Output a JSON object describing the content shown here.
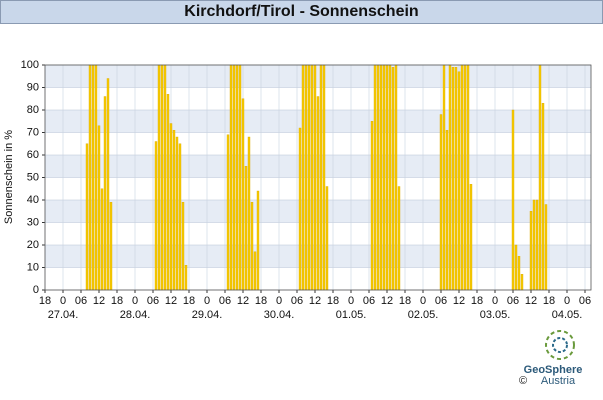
{
  "chart_data": {
    "type": "bar",
    "title": "Kirchdorf/Tirol - Sonnenschein",
    "ylabel": "Sonnenschein in %",
    "color": "#f7cc00",
    "edge": "#d9a900",
    "band_color": "#e6ecf5",
    "grid": true,
    "ylim": [
      0,
      100
    ],
    "yticks": [
      0,
      10,
      20,
      30,
      40,
      50,
      60,
      70,
      80,
      90,
      100
    ],
    "xlim": [
      -6,
      176
    ],
    "xticks": [
      {
        "value": -6,
        "label": "18"
      },
      {
        "value": 0,
        "label": "0"
      },
      {
        "value": 6,
        "label": "06"
      },
      {
        "value": 12,
        "label": "12"
      },
      {
        "value": 18,
        "label": "18"
      },
      {
        "value": 24,
        "label": "0"
      },
      {
        "value": 30,
        "label": "06"
      },
      {
        "value": 36,
        "label": "12"
      },
      {
        "value": 42,
        "label": "18"
      },
      {
        "value": 48,
        "label": "0"
      },
      {
        "value": 54,
        "label": "06"
      },
      {
        "value": 60,
        "label": "12"
      },
      {
        "value": 66,
        "label": "18"
      },
      {
        "value": 72,
        "label": "0"
      },
      {
        "value": 78,
        "label": "06"
      },
      {
        "value": 84,
        "label": "12"
      },
      {
        "value": 90,
        "label": "18"
      },
      {
        "value": 96,
        "label": "0"
      },
      {
        "value": 102,
        "label": "06"
      },
      {
        "value": 108,
        "label": "12"
      },
      {
        "value": 114,
        "label": "18"
      },
      {
        "value": 120,
        "label": "0"
      },
      {
        "value": 126,
        "label": "06"
      },
      {
        "value": 132,
        "label": "12"
      },
      {
        "value": 138,
        "label": "18"
      },
      {
        "value": 144,
        "label": "0"
      },
      {
        "value": 150,
        "label": "06"
      },
      {
        "value": 156,
        "label": "12"
      },
      {
        "value": 162,
        "label": "18"
      },
      {
        "value": 168,
        "label": "0"
      },
      {
        "value": 174,
        "label": "06"
      }
    ],
    "date_ticks": [
      {
        "value": 0,
        "label": "27.04."
      },
      {
        "value": 24,
        "label": "28.04."
      },
      {
        "value": 48,
        "label": "29.04."
      },
      {
        "value": 72,
        "label": "30.04."
      },
      {
        "value": 96,
        "label": "01.05."
      },
      {
        "value": 120,
        "label": "02.05."
      },
      {
        "value": 144,
        "label": "03.05."
      },
      {
        "value": 168,
        "label": "04.05."
      }
    ],
    "x": [
      8,
      9,
      10,
      11,
      12,
      13,
      14,
      15,
      16,
      31,
      32,
      33,
      34,
      35,
      36,
      37,
      38,
      39,
      40,
      41,
      55,
      56,
      57,
      58,
      59,
      60,
      61,
      62,
      63,
      64,
      65,
      79,
      80,
      81,
      82,
      83,
      84,
      85,
      86,
      87,
      88,
      103,
      104,
      105,
      106,
      107,
      108,
      109,
      110,
      111,
      112,
      126,
      127,
      128,
      129,
      130,
      131,
      132,
      133,
      134,
      135,
      136,
      150,
      151,
      152,
      153,
      156,
      157,
      158,
      159,
      160,
      161
    ],
    "values": [
      65,
      100,
      100,
      100,
      73,
      45,
      86,
      94,
      39,
      66,
      100,
      100,
      100,
      87,
      74,
      71,
      68,
      65,
      39,
      11,
      69,
      100,
      100,
      100,
      100,
      85,
      55,
      68,
      39,
      17,
      44,
      72,
      100,
      100,
      100,
      100,
      100,
      86,
      100,
      100,
      46,
      75,
      100,
      100,
      100,
      100,
      100,
      100,
      99,
      100,
      46,
      78,
      100,
      71,
      100,
      99,
      99,
      97,
      100,
      100,
      100,
      47,
      80,
      20,
      15,
      7,
      35,
      40,
      40,
      100,
      83,
      38
    ]
  },
  "branding": {
    "name": "GeoSphere",
    "sub": "Austria",
    "copyright": "©"
  }
}
